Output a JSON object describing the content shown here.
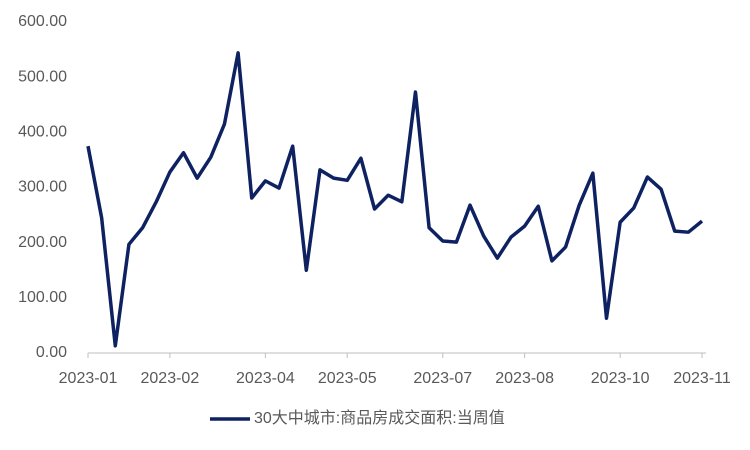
{
  "chart_data": {
    "type": "line",
    "categories": [
      "2023-01",
      null,
      null,
      null,
      null,
      null,
      "2023-02",
      null,
      null,
      null,
      null,
      null,
      null,
      "2023-04",
      null,
      null,
      null,
      null,
      null,
      "2023-05",
      null,
      null,
      null,
      null,
      null,
      null,
      "2023-07",
      null,
      null,
      null,
      null,
      null,
      "2023-08",
      null,
      null,
      null,
      null,
      null,
      null,
      "2023-10",
      null,
      null,
      null,
      null,
      null,
      "2023-11"
    ],
    "series": [
      {
        "name": "30大中城市:商品房成交面积:当周值",
        "color": "#0e2160",
        "values": [
          375,
          245,
          13,
          197,
          227,
          274,
          328,
          363,
          317,
          355,
          415,
          544,
          281,
          312,
          299,
          375,
          150,
          332,
          317,
          313,
          353,
          261,
          286,
          274,
          473,
          227,
          203,
          201,
          268,
          212,
          172,
          210,
          230,
          266,
          167,
          192,
          268,
          326,
          63,
          237,
          263,
          319,
          297,
          221,
          219,
          239
        ]
      }
    ],
    "ylim": [
      0,
      600
    ],
    "yticks": [
      {
        "value": 0,
        "label": "0.00"
      },
      {
        "value": 100,
        "label": "100.00"
      },
      {
        "value": 200,
        "label": "200.00"
      },
      {
        "value": 300,
        "label": "300.00"
      },
      {
        "value": 400,
        "label": "400.00"
      },
      {
        "value": 500,
        "label": "500.00"
      },
      {
        "value": 600,
        "label": "600.00"
      }
    ],
    "legend": "bottom"
  }
}
